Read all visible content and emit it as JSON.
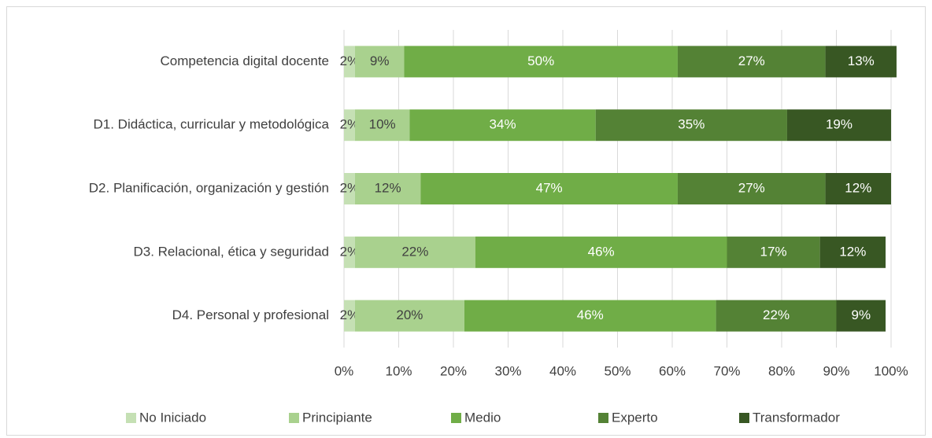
{
  "chart_data": {
    "type": "stacked_bar_horizontal",
    "categories": [
      "Competencia digital docente",
      "D1. Didáctica, curricular y metodológica",
      "D2. Planificación, organización y gestión",
      "D3. Relacional, ética y seguridad",
      "D4. Personal y profesional"
    ],
    "series": [
      {
        "name": "No Iniciado",
        "color": "#c5e0b4",
        "values": [
          2,
          2,
          2,
          2,
          2
        ],
        "value_labels": [
          "2%",
          "2%",
          "2%",
          "2%",
          "2%"
        ]
      },
      {
        "name": "Principiante",
        "color": "#a9d18e",
        "values": [
          9,
          10,
          12,
          22,
          20
        ],
        "value_labels": [
          "9%",
          "10%",
          "12%",
          "22%",
          "20%"
        ]
      },
      {
        "name": "Medio",
        "color": "#70ad47",
        "values": [
          50,
          34,
          47,
          46,
          46
        ],
        "value_labels": [
          "50%",
          "34%",
          "47%",
          "46%",
          "46%"
        ]
      },
      {
        "name": "Experto",
        "color": "#548235",
        "values": [
          27,
          35,
          27,
          17,
          22
        ],
        "value_labels": [
          "27%",
          "35%",
          "27%",
          "17%",
          "22%"
        ]
      },
      {
        "name": "Transformador",
        "color": "#385723",
        "values": [
          13,
          19,
          12,
          12,
          9
        ],
        "value_labels": [
          "13%",
          "19%",
          "12%",
          "12%",
          "9%"
        ]
      }
    ],
    "xlim": [
      0,
      100
    ],
    "xticks": [
      {
        "value": 0,
        "label": "0%"
      },
      {
        "value": 10,
        "label": "10%"
      },
      {
        "value": 20,
        "label": "20%"
      },
      {
        "value": 30,
        "label": "30%"
      },
      {
        "value": 40,
        "label": "40%"
      },
      {
        "value": 50,
        "label": "50%"
      },
      {
        "value": 60,
        "label": "60%"
      },
      {
        "value": 70,
        "label": "70%"
      },
      {
        "value": 80,
        "label": "80%"
      },
      {
        "value": 90,
        "label": "90%"
      },
      {
        "value": 100,
        "label": "100%"
      }
    ],
    "grid": true,
    "legend": "bottom"
  }
}
